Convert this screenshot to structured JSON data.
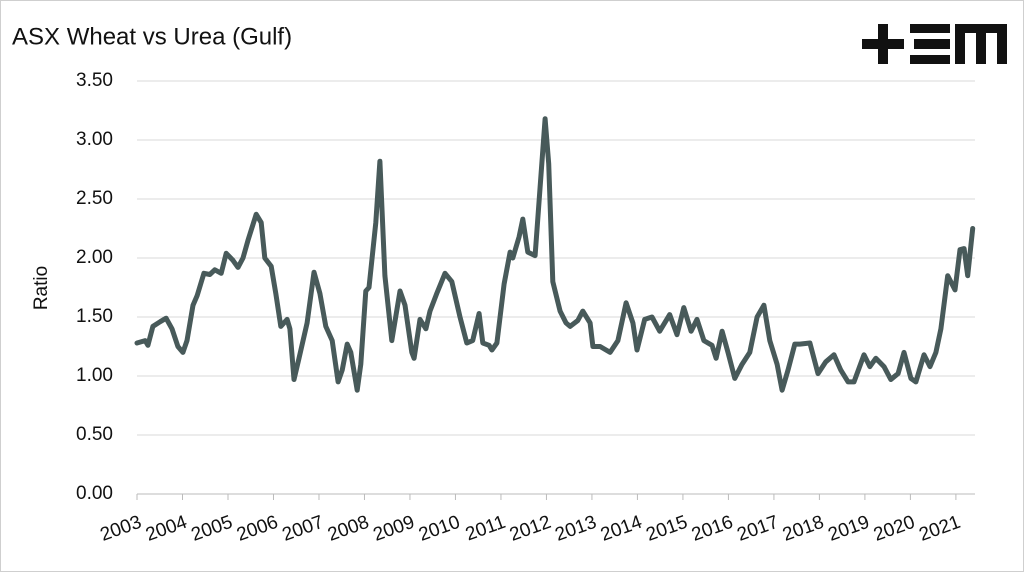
{
  "chart_data": {
    "type": "line",
    "title": "ASX Wheat vs Urea (Gulf)",
    "y_label": "Ratio",
    "color": "#485a5a",
    "grid": true,
    "x": [
      2003.0,
      2003.18,
      2003.24,
      2003.35,
      2003.51,
      2003.64,
      2003.77,
      2003.9,
      2004.01,
      2004.1,
      2004.23,
      2004.32,
      2004.47,
      2004.6,
      2004.71,
      2004.85,
      2004.96,
      2005.11,
      2005.22,
      2005.33,
      2005.44,
      2005.62,
      2005.73,
      2005.81,
      2005.95,
      2006.05,
      2006.16,
      2006.3,
      2006.36,
      2006.45,
      2006.56,
      2006.74,
      2006.89,
      2007.02,
      2007.15,
      2007.29,
      2007.42,
      2007.51,
      2007.62,
      2007.7,
      2007.84,
      2007.92,
      2008.03,
      2008.1,
      2008.25,
      2008.34,
      2008.45,
      2008.6,
      2008.78,
      2008.89,
      2009.04,
      2009.09,
      2009.22,
      2009.35,
      2009.44,
      2009.59,
      2009.77,
      2009.92,
      2010.1,
      2010.25,
      2010.38,
      2010.52,
      2010.6,
      2010.74,
      2010.8,
      2010.91,
      2011.07,
      2011.2,
      2011.26,
      2011.4,
      2011.48,
      2011.59,
      2011.75,
      2011.86,
      2011.97,
      2012.05,
      2012.14,
      2012.3,
      2012.43,
      2012.52,
      2012.69,
      2012.8,
      2012.96,
      2013.02,
      2013.18,
      2013.4,
      2013.57,
      2013.75,
      2013.9,
      2013.99,
      2014.16,
      2014.32,
      2014.49,
      2014.71,
      2014.87,
      2015.02,
      2015.18,
      2015.31,
      2015.46,
      2015.64,
      2015.73,
      2015.86,
      2015.99,
      2016.14,
      2016.3,
      2016.47,
      2016.63,
      2016.78,
      2016.91,
      2017.07,
      2017.18,
      2017.31,
      2017.46,
      2017.57,
      2017.79,
      2017.97,
      2018.14,
      2018.32,
      2018.47,
      2018.63,
      2018.76,
      2018.98,
      2019.11,
      2019.24,
      2019.42,
      2019.57,
      2019.73,
      2019.86,
      2020.01,
      2020.12,
      2020.3,
      2020.43,
      2020.56,
      2020.67,
      2020.82,
      2020.98,
      2021.09,
      2021.18,
      2021.26,
      2021.37
    ],
    "values": [
      1.28,
      1.3,
      1.26,
      1.42,
      1.46,
      1.49,
      1.4,
      1.25,
      1.2,
      1.3,
      1.6,
      1.68,
      1.87,
      1.86,
      1.9,
      1.87,
      2.04,
      1.98,
      1.92,
      2.0,
      2.15,
      2.37,
      2.3,
      2.0,
      1.93,
      1.7,
      1.42,
      1.48,
      1.4,
      0.97,
      1.15,
      1.45,
      1.88,
      1.7,
      1.42,
      1.3,
      0.95,
      1.05,
      1.27,
      1.2,
      0.88,
      1.1,
      1.72,
      1.75,
      2.3,
      2.82,
      1.85,
      1.3,
      1.72,
      1.6,
      1.2,
      1.15,
      1.48,
      1.4,
      1.55,
      1.7,
      1.87,
      1.8,
      1.5,
      1.28,
      1.3,
      1.53,
      1.28,
      1.26,
      1.22,
      1.28,
      1.78,
      2.05,
      2.0,
      2.18,
      2.33,
      2.05,
      2.02,
      2.6,
      3.18,
      2.8,
      1.8,
      1.55,
      1.45,
      1.42,
      1.47,
      1.55,
      1.45,
      1.25,
      1.25,
      1.2,
      1.3,
      1.62,
      1.45,
      1.22,
      1.48,
      1.5,
      1.38,
      1.52,
      1.35,
      1.58,
      1.38,
      1.48,
      1.3,
      1.26,
      1.15,
      1.38,
      1.2,
      0.98,
      1.1,
      1.2,
      1.5,
      1.6,
      1.3,
      1.1,
      0.88,
      1.05,
      1.27,
      1.27,
      1.28,
      1.02,
      1.12,
      1.18,
      1.05,
      0.95,
      0.95,
      1.18,
      1.08,
      1.15,
      1.08,
      0.97,
      1.02,
      1.2,
      0.98,
      0.95,
      1.18,
      1.08,
      1.2,
      1.4,
      1.85,
      1.73,
      2.07,
      2.08,
      1.85,
      2.25
    ],
    "xlim": [
      2003,
      2021.42
    ],
    "xticks": [
      2003,
      2004,
      2005,
      2006,
      2007,
      2008,
      2009,
      2010,
      2011,
      2012,
      2013,
      2014,
      2015,
      2016,
      2017,
      2018,
      2019,
      2020,
      2021
    ],
    "ylim": [
      0,
      3.5
    ],
    "yticks": [
      {
        "value": 0,
        "label": "0.00"
      },
      {
        "value": 0.5,
        "label": "0.50"
      },
      {
        "value": 1,
        "label": "1.00"
      },
      {
        "value": 1.5,
        "label": "1.50"
      },
      {
        "value": 2,
        "label": "2.00"
      },
      {
        "value": 2.5,
        "label": "2.50"
      },
      {
        "value": 3,
        "label": "3.00"
      },
      {
        "value": 3.5,
        "label": "3.50"
      }
    ]
  }
}
